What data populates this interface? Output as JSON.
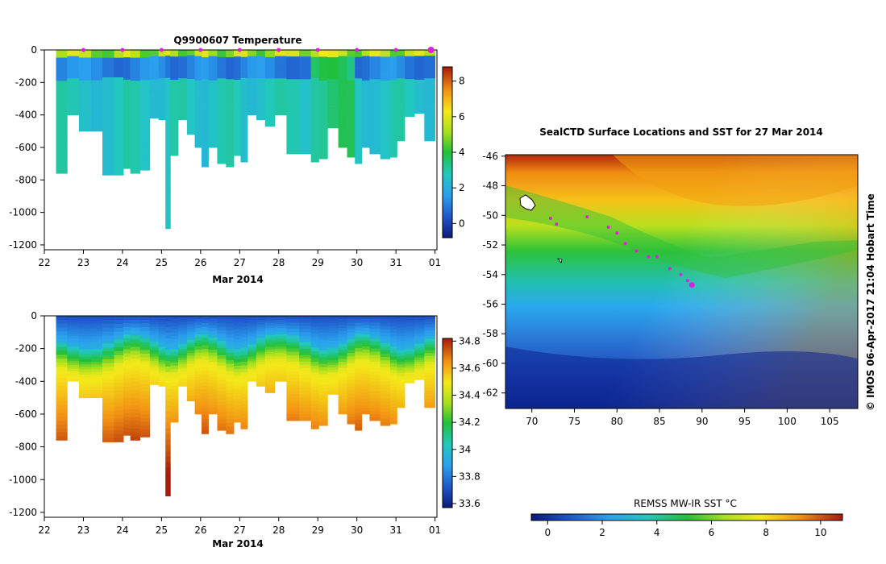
{
  "top_panel": {
    "title": "Q9900607  Temperature",
    "xlabel": "Mar 2014",
    "xticks": [
      "22",
      "23",
      "24",
      "25",
      "26",
      "27",
      "28",
      "29",
      "30",
      "31",
      "01"
    ],
    "yticks": [
      "0",
      "-200",
      "-400",
      "-600",
      "-800",
      "-1000",
      "-1200"
    ],
    "colorbar_ticks": [
      "8",
      "6",
      "4",
      "2",
      "0"
    ]
  },
  "bottom_panel": {
    "xlabel": "Mar 2014",
    "xticks": [
      "22",
      "23",
      "24",
      "25",
      "26",
      "27",
      "28",
      "29",
      "30",
      "31",
      "01"
    ],
    "yticks": [
      "0",
      "-200",
      "-400",
      "-600",
      "-800",
      "-1000",
      "-1200"
    ],
    "colorbar_ticks": [
      "34.8",
      "34.6",
      "34.4",
      "34.2",
      "34",
      "33.8",
      "33.6"
    ]
  },
  "map_panel": {
    "title": "SealCTD Surface Locations and SST for 27 Mar 2014",
    "lon_ticks": [
      "70",
      "75",
      "80",
      "85",
      "90",
      "95",
      "100",
      "105"
    ],
    "lat_ticks": [
      "-46",
      "-48",
      "-50",
      "-52",
      "-54",
      "-56",
      "-58",
      "-60",
      "-62"
    ],
    "colorbar_label": "REMSS MW-IR SST °C",
    "colorbar_ticks": [
      "0",
      "2",
      "4",
      "6",
      "8",
      "10"
    ],
    "credit": "© IMOS 06-Apr-2017 21:04 Hobart Time"
  },
  "colors": {
    "profile_marker": "#e020e0",
    "track_marker": "#e020e0"
  },
  "chart_data": [
    {
      "type": "heatmap",
      "title": "Q9900607  Temperature",
      "xlabel": "Mar 2014",
      "ylabel": "",
      "xlim": [
        22,
        32.05
      ],
      "ylim": [
        -1230,
        0
      ],
      "colorbar_range": [
        -0.8,
        8.8
      ],
      "profile_times": [
        22.45,
        22.72,
        23.05,
        23.35,
        23.62,
        23.95,
        24.1,
        24.3,
        24.6,
        24.8,
        25.05,
        25.15,
        25.3,
        25.55,
        25.75,
        25.95,
        26.1,
        26.3,
        26.55,
        26.75,
        26.95,
        27.1,
        27.3,
        27.55,
        27.75,
        28.05,
        28.35,
        28.7,
        28.95,
        29.1,
        29.4,
        29.65,
        29.85,
        30.05,
        30.2,
        30.45,
        30.75,
        30.95,
        31.1,
        31.35,
        31.6,
        31.85
      ],
      "profile_depth": [
        -760,
        -400,
        -500,
        -500,
        -770,
        -770,
        -730,
        -760,
        -740,
        -420,
        -430,
        -1100,
        -650,
        -430,
        -520,
        -600,
        -720,
        -600,
        -700,
        -720,
        -650,
        -690,
        -400,
        -430,
        -470,
        -400,
        -640,
        -640,
        -690,
        -670,
        -480,
        -600,
        -660,
        -700,
        -600,
        -640,
        -670,
        -660,
        -560,
        -410,
        -390,
        -560
      ],
      "profile_marks": [
        23,
        24,
        25,
        26,
        27,
        28,
        29,
        30,
        31,
        32
      ]
    },
    {
      "type": "heatmap",
      "title": "",
      "xlabel": "Mar 2014",
      "ylabel": "",
      "xlim": [
        22,
        32.05
      ],
      "ylim": [
        -1230,
        0
      ],
      "colorbar_range": [
        33.57,
        34.82
      ],
      "profile_times": [
        22.45,
        22.72,
        23.05,
        23.35,
        23.62,
        23.95,
        24.1,
        24.3,
        24.6,
        24.8,
        25.05,
        25.15,
        25.3,
        25.55,
        25.75,
        25.95,
        26.1,
        26.3,
        26.55,
        26.75,
        26.95,
        27.1,
        27.3,
        27.55,
        27.75,
        28.05,
        28.35,
        28.7,
        28.95,
        29.1,
        29.4,
        29.65,
        29.85,
        30.05,
        30.2,
        30.45,
        30.75,
        30.95,
        31.1,
        31.35,
        31.6,
        31.85
      ],
      "profile_depth": [
        -760,
        -400,
        -500,
        -500,
        -770,
        -770,
        -730,
        -760,
        -740,
        -420,
        -430,
        -1100,
        -650,
        -430,
        -520,
        -600,
        -720,
        -600,
        -700,
        -720,
        -650,
        -690,
        -400,
        -430,
        -470,
        -400,
        -640,
        -640,
        -690,
        -670,
        -480,
        -600,
        -660,
        -700,
        -600,
        -640,
        -670,
        -660,
        -560,
        -410,
        -390,
        -560
      ]
    },
    {
      "type": "heatmap",
      "title": "SealCTD Surface Locations and SST for 27 Mar 2014",
      "xlabel": "",
      "ylabel": "",
      "xlim": [
        66.9,
        108.3
      ],
      "ylim": [
        -63.05,
        -45.9
      ],
      "colorbar_label": "REMSS MW-IR SST °C",
      "colorbar_range": [
        -0.6,
        10.8
      ],
      "track_lon": [
        72.2,
        72.9,
        76.5,
        79.0,
        80.0,
        81.0,
        82.3,
        83.7,
        84.7,
        86.2,
        87.5,
        88.3,
        88.8
      ],
      "track_lat": [
        -50.2,
        -50.6,
        -50.1,
        -50.8,
        -51.2,
        -51.9,
        -52.4,
        -52.8,
        -52.8,
        -53.6,
        -54.0,
        -54.4,
        -54.7
      ]
    }
  ]
}
